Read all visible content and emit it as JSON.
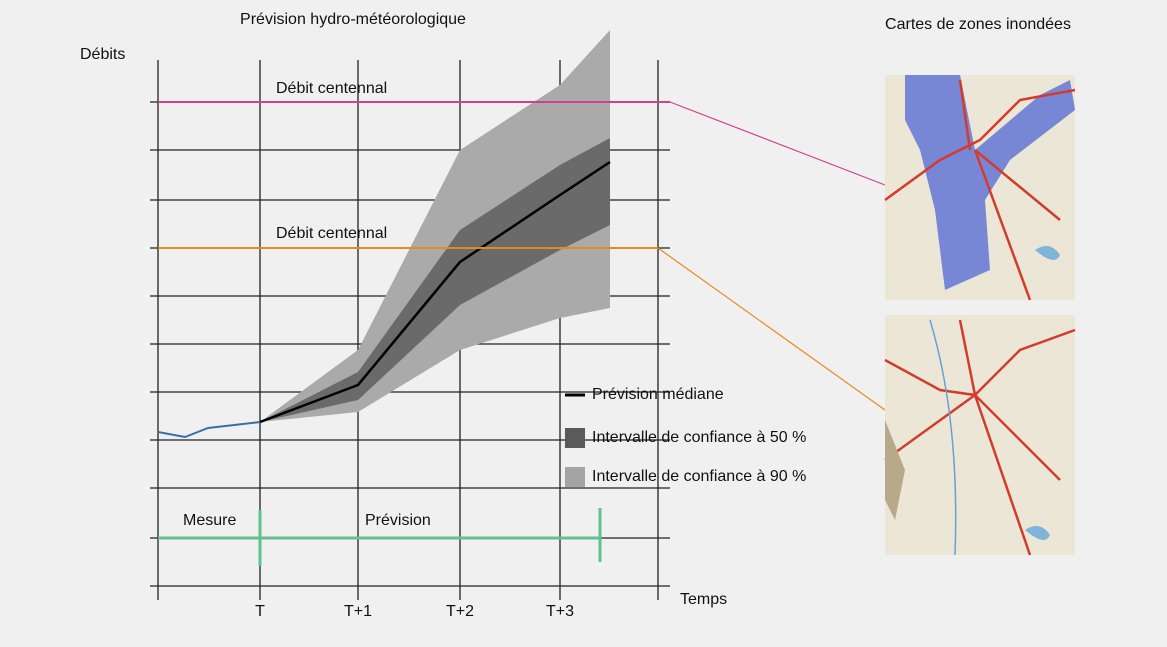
{
  "header": {
    "title": "Prévision hydro-météorologique",
    "maps_title": "Cartes de zones inondées"
  },
  "axes": {
    "y_label": "Débits",
    "x_label": "Temps",
    "x_ticks": [
      "T",
      "T+1",
      "T+2",
      "T+3"
    ]
  },
  "thresholds": [
    "Débit centennal",
    "Débit centennal"
  ],
  "legend": [
    "Prévision médiane",
    "Intervalle de confiance à 50 %",
    "Intervalle de confiance à 90 %"
  ],
  "phases": [
    "Mesure",
    "Prévision"
  ]
}
